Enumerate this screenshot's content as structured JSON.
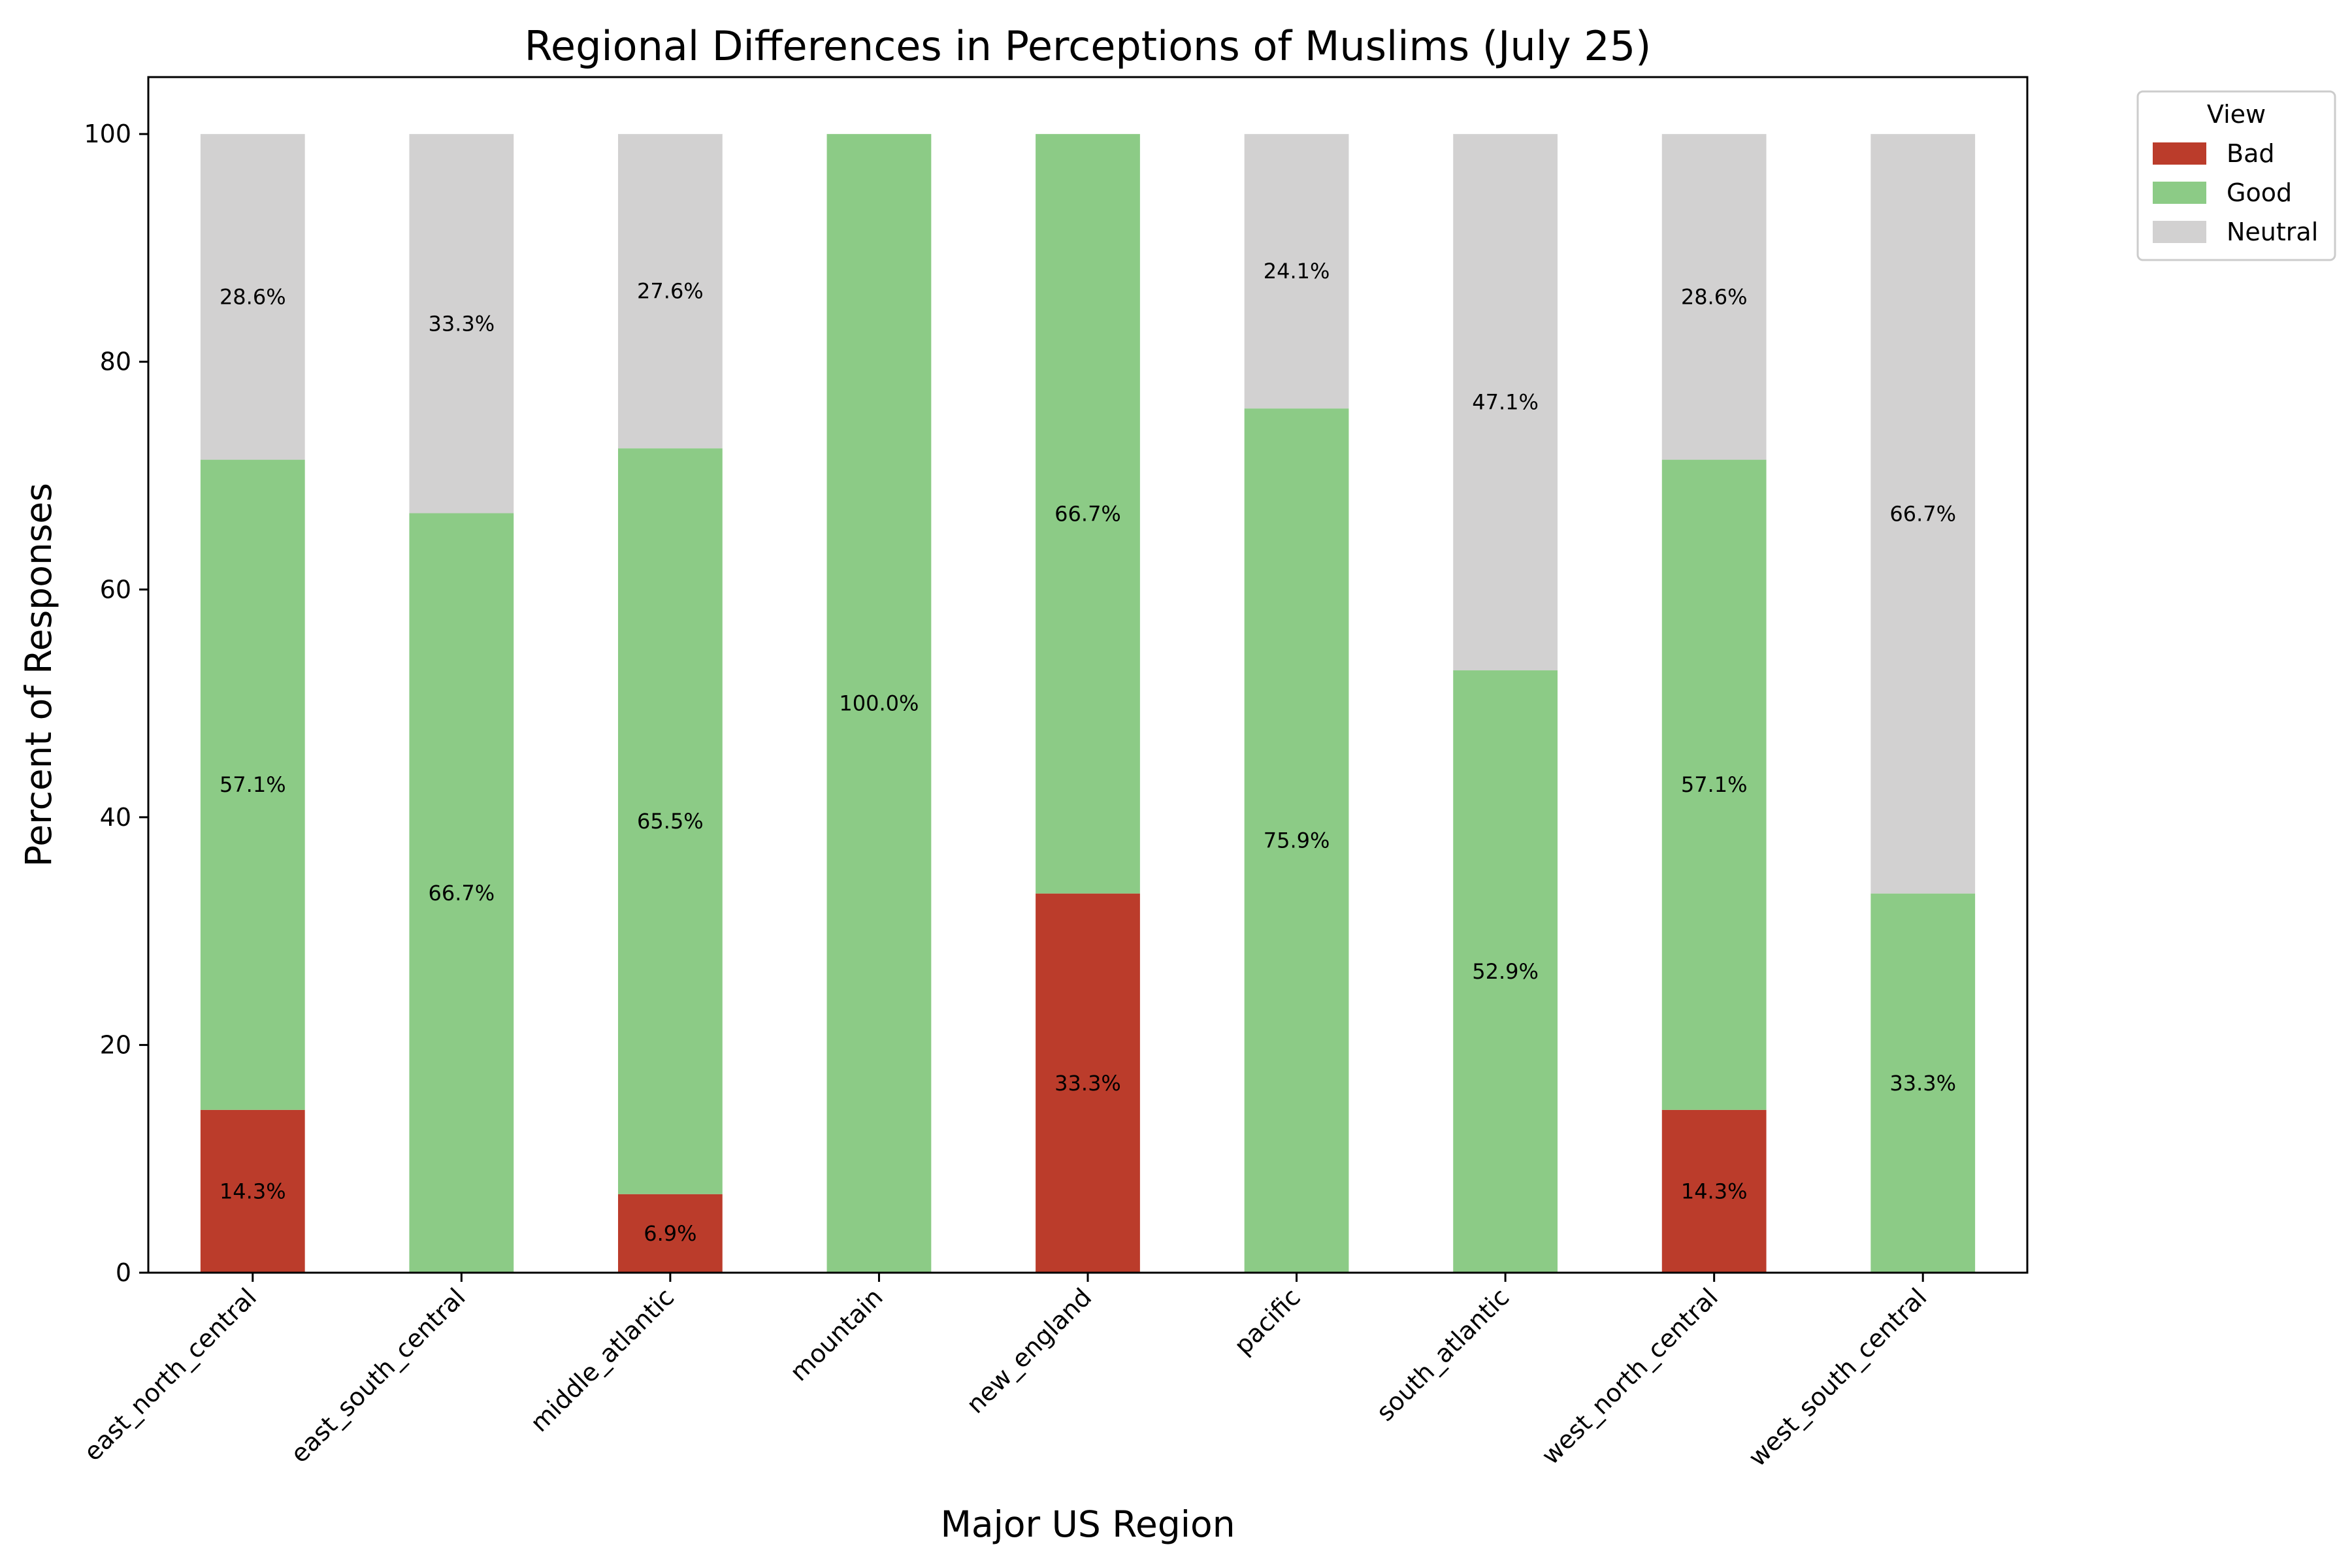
{
  "chart_data": {
    "type": "bar",
    "stacked": true,
    "title": "Regional Differences in Perceptions of Muslims (July 25)",
    "xlabel": "Major US Region",
    "ylabel": "Percent of Responses",
    "ylim": [
      0,
      105
    ],
    "yticks": [
      0,
      20,
      40,
      60,
      80,
      100
    ],
    "categories": [
      "east_north_central",
      "east_south_central",
      "middle_atlantic",
      "mountain",
      "new_england",
      "pacific",
      "south_atlantic",
      "west_north_central",
      "west_south_central"
    ],
    "series": [
      {
        "name": "Bad",
        "color": "#bb3c2b",
        "values": [
          14.3,
          0,
          6.9,
          0,
          33.3,
          0,
          0,
          14.3,
          0
        ]
      },
      {
        "name": "Good",
        "color": "#8ccb86",
        "values": [
          57.1,
          66.7,
          65.5,
          100.0,
          66.7,
          75.9,
          52.9,
          57.1,
          33.3
        ]
      },
      {
        "name": "Neutral",
        "color": "#d2d1d1",
        "values": [
          28.6,
          33.3,
          27.6,
          0,
          0,
          24.1,
          47.1,
          28.6,
          66.7
        ]
      }
    ],
    "legend": {
      "title": "View",
      "position": "outside-top-right"
    },
    "grid": false
  }
}
